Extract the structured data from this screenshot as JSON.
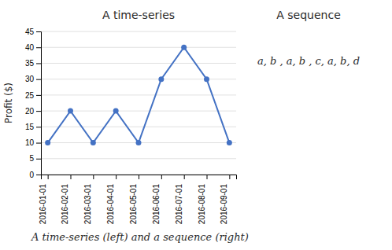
{
  "chart_data": {
    "type": "line",
    "title": "A time-series",
    "ylabel": "Profit ($)",
    "annotations": [
      "A sequence",
      "a, b , a, b , c, a, b, d",
      "A time-series (left) and a sequence (right)"
    ],
    "categories": [
      "2016-01-01",
      "2016-02-01",
      "2016-03-01",
      "2016-04-01",
      "2016-05-01",
      "2016-06-01",
      "2016-07-01",
      "2016-08-01",
      "2016-09-01"
    ],
    "values": [
      10,
      20,
      10,
      20,
      10,
      30,
      40,
      30,
      10
    ],
    "color": "#4472C4",
    "marker": "circle",
    "ylim": [
      0,
      45
    ],
    "yticks": [
      0,
      5,
      10,
      15,
      20,
      25,
      30,
      35,
      40,
      45
    ],
    "grid": true
  }
}
